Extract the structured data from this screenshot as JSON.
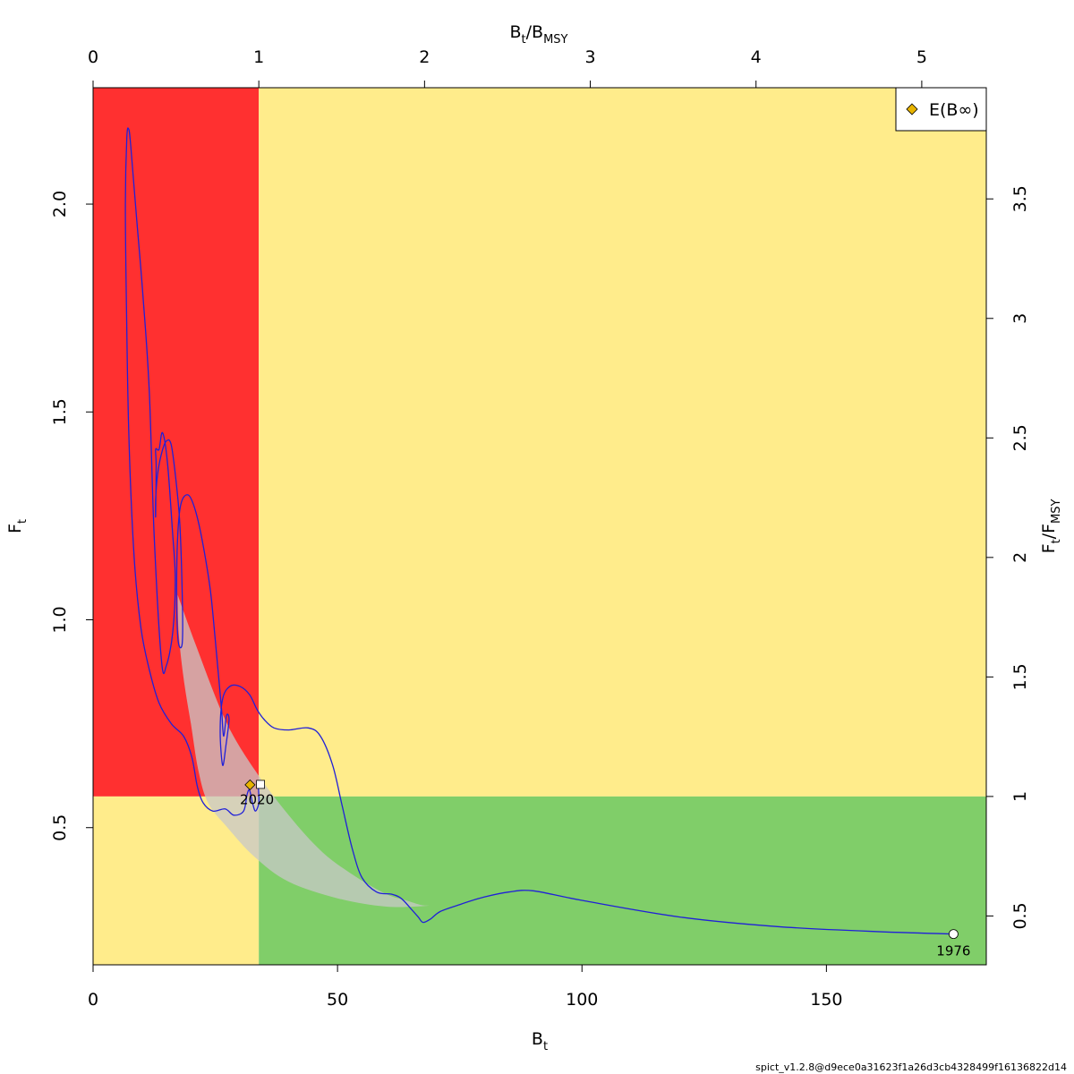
{
  "chart_data": {
    "type": "line",
    "xlabel_base": "B",
    "xlabel_sub": "t",
    "ylabel_base": "F",
    "ylabel_sub": "t",
    "top_label_num_base": "B",
    "top_label_num_sub": "t",
    "top_label_den_base": "B",
    "top_label_den_sub": "MSY",
    "right_label_num_base": "F",
    "right_label_num_sub": "t",
    "right_label_den_base": "F",
    "right_label_den_sub": "MSY",
    "xlim": [
      0,
      182.7
    ],
    "ylim": [
      0.17,
      2.28
    ],
    "x_ticks": [
      "0",
      "50",
      "100",
      "150"
    ],
    "y_ticks": [
      "0.5",
      "1.0",
      "1.5",
      "2.0"
    ],
    "top_ticks": [
      "0",
      "1",
      "2",
      "3",
      "4",
      "5"
    ],
    "right_ticks": [
      "0.5",
      "1",
      "1.5",
      "2",
      "2.5",
      "3",
      "3.5"
    ],
    "Bmsy": 33.9,
    "Fmsy": 0.575,
    "legend": {
      "label": "E(B∞)",
      "position": "top-right"
    },
    "annotations": {
      "start_year": "1976",
      "end_year": "2020"
    },
    "start_point": [
      176.0,
      0.244
    ],
    "end_point": [
      33.7,
      0.604
    ],
    "equilibrium_point": [
      32.1,
      0.603
    ],
    "trajectory": [
      [
        176.0,
        0.244
      ],
      [
        160,
        0.25
      ],
      [
        140,
        0.262
      ],
      [
        120,
        0.285
      ],
      [
        100,
        0.325
      ],
      [
        90,
        0.348
      ],
      [
        85,
        0.345
      ],
      [
        80,
        0.333
      ],
      [
        75,
        0.315
      ],
      [
        71,
        0.298
      ],
      [
        69,
        0.28
      ],
      [
        67.5,
        0.272
      ],
      [
        66.5,
        0.285
      ],
      [
        65,
        0.305
      ],
      [
        63,
        0.33
      ],
      [
        61,
        0.34
      ],
      [
        58,
        0.345
      ],
      [
        55,
        0.38
      ],
      [
        53,
        0.45
      ],
      [
        51,
        0.55
      ],
      [
        49,
        0.65
      ],
      [
        46.5,
        0.72
      ],
      [
        44,
        0.74
      ],
      [
        40,
        0.735
      ],
      [
        37,
        0.74
      ],
      [
        35,
        0.76
      ],
      [
        33.5,
        0.785
      ],
      [
        32,
        0.82
      ],
      [
        30,
        0.84
      ],
      [
        28,
        0.84
      ],
      [
        26.5,
        0.81
      ],
      [
        26,
        0.73
      ],
      [
        26.5,
        0.65
      ],
      [
        27.2,
        0.7
      ],
      [
        27.8,
        0.76
      ],
      [
        27.3,
        0.77
      ],
      [
        26.7,
        0.72
      ],
      [
        26.3,
        0.78
      ],
      [
        25.7,
        0.86
      ],
      [
        25,
        0.95
      ],
      [
        24,
        1.07
      ],
      [
        22.5,
        1.18
      ],
      [
        21,
        1.26
      ],
      [
        19.5,
        1.3
      ],
      [
        18,
        1.28
      ],
      [
        17.3,
        1.2
      ],
      [
        17.1,
        1.06
      ],
      [
        17.4,
        0.95
      ],
      [
        18.2,
        0.94
      ],
      [
        18.3,
        1.02
      ],
      [
        17.8,
        1.22
      ],
      [
        17,
        1.33
      ],
      [
        16,
        1.42
      ],
      [
        15,
        1.43
      ],
      [
        14,
        1.4
      ],
      [
        13.2,
        1.35
      ],
      [
        12.8,
        1.29
      ],
      [
        12.8,
        1.25
      ],
      [
        12.9,
        1.37
      ],
      [
        12.8,
        1.41
      ],
      [
        13.5,
        1.41
      ],
      [
        14.2,
        1.45
      ],
      [
        15.2,
        1.38
      ],
      [
        16.2,
        1.22
      ],
      [
        16.8,
        1.1
      ],
      [
        16.3,
        0.97
      ],
      [
        15,
        0.89
      ],
      [
        14,
        0.9
      ],
      [
        12.5,
        1.2
      ],
      [
        11.5,
        1.55
      ],
      [
        10.2,
        1.78
      ],
      [
        8.8,
        1.98
      ],
      [
        7.7,
        2.14
      ],
      [
        7.3,
        2.18
      ],
      [
        6.9,
        2.16
      ],
      [
        6.6,
        2.0
      ],
      [
        6.8,
        1.78
      ],
      [
        7.3,
        1.45
      ],
      [
        8.4,
        1.15
      ],
      [
        9.8,
        0.98
      ],
      [
        11.5,
        0.88
      ],
      [
        13.5,
        0.8
      ],
      [
        16,
        0.75
      ],
      [
        18.5,
        0.72
      ],
      [
        20.2,
        0.67
      ],
      [
        21.3,
        0.6
      ],
      [
        22.5,
        0.56
      ],
      [
        24.5,
        0.54
      ],
      [
        27,
        0.545
      ],
      [
        28.8,
        0.53
      ],
      [
        30.8,
        0.54
      ],
      [
        31.5,
        0.58
      ],
      [
        32,
        0.59
      ],
      [
        32.6,
        0.56
      ],
      [
        33.2,
        0.54
      ],
      [
        33.9,
        0.56
      ],
      [
        33.8,
        0.6
      ]
    ],
    "ellipse_upper": [
      [
        17.3,
        1.06
      ],
      [
        21,
        0.94
      ],
      [
        27,
        0.76
      ],
      [
        33,
        0.64
      ],
      [
        40,
        0.53
      ],
      [
        47,
        0.44
      ],
      [
        54,
        0.38
      ],
      [
        60,
        0.34
      ],
      [
        64,
        0.325
      ],
      [
        67,
        0.314
      ],
      [
        68.5,
        0.312
      ]
    ],
    "ellipse_lower": [
      [
        68.5,
        0.312
      ],
      [
        60,
        0.31
      ],
      [
        50,
        0.33
      ],
      [
        40,
        0.37
      ],
      [
        33,
        0.43
      ],
      [
        27.5,
        0.5
      ],
      [
        23.5,
        0.56
      ],
      [
        21.5,
        0.64
      ],
      [
        20,
        0.75
      ],
      [
        18.5,
        0.86
      ],
      [
        17.5,
        0.97
      ],
      [
        17.3,
        1.06
      ]
    ],
    "colors": {
      "red_zone": "#ff3030",
      "yellow_zone": "#ffec8b",
      "green_zone": "#80ce69",
      "trajectory": "#2020d8",
      "ellipse": "#c8c8c8",
      "diamond": "#e8b400"
    }
  },
  "footer": "spict_v1.2.8@d9ece0a31623f1a26d3cb4328499f16136822d14"
}
